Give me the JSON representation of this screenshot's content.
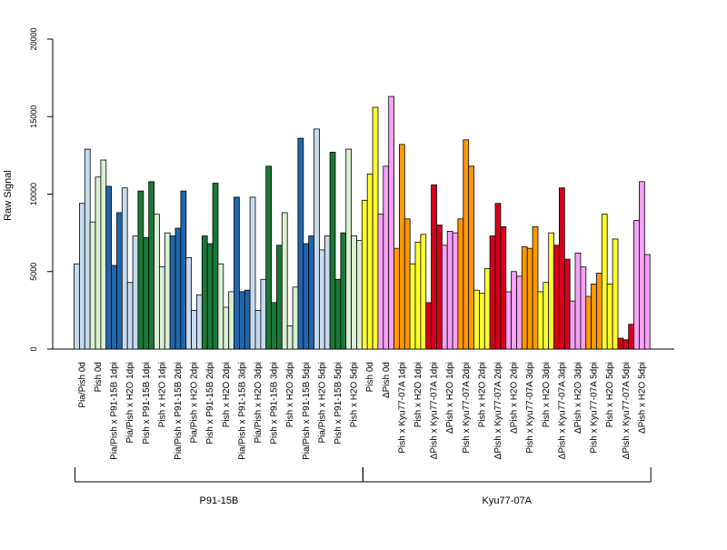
{
  "chart_data": {
    "type": "bar",
    "ylabel": "Raw Signal",
    "ylim": [
      0,
      20000
    ],
    "yticks": [
      0,
      5000,
      10000,
      15000,
      20000
    ],
    "grid": false,
    "legend": "none",
    "colors": {
      "light_blue": "#c6dbef",
      "dark_blue": "#2166ac",
      "light_green": "#d9f0d3",
      "dark_green": "#1b7837",
      "yellow": "#ffff33",
      "violet": "#f7a1f7",
      "orange": "#ff9900",
      "red": "#d7001c"
    },
    "bar_colors": [
      "light_blue",
      "light_green",
      "dark_blue",
      "light_blue",
      "dark_green",
      "light_green",
      "dark_blue",
      "light_blue",
      "dark_green",
      "light_green",
      "dark_blue",
      "light_blue",
      "dark_green",
      "light_green",
      "dark_blue",
      "light_blue",
      "dark_green",
      "light_green",
      "yellow",
      "violet",
      "orange",
      "yellow",
      "red",
      "violet",
      "orange",
      "yellow",
      "red",
      "violet",
      "orange",
      "yellow",
      "red",
      "violet",
      "orange",
      "yellow",
      "red",
      "violet"
    ],
    "categories": [
      "Pia/Pish 0d",
      "Pish 0d",
      "Pia/Pish x P91-15B 1dpi",
      "Pia/Pish x H2O 1dpi",
      "Pish x P91-15B 1dpi",
      "Pish x H2O 1dpi",
      "Pia/Pish x P91-15B 2dpi",
      "Pia/Pish x H2O 2dpi",
      "Pish x P91-15B 2dpi",
      "Pish x H2O 2dpi",
      "Pia/Pish x P91-15B 3dpi",
      "Pia/Pish x H2O 3dpi",
      "Pish x P91-15B 3dpi",
      "Pish x H2O 3dpi",
      "Pia/Pish x P91-15B 5dpi",
      "Pia/Pish x H2O 5dpi",
      "Pish x P91-15B 5dpi",
      "Pish x H2O 5dpi",
      "Pish 0d",
      "ΔPish 0d",
      "Pish x Kyu77-07A 1dpi",
      "Pish x H2O 1dpi",
      "ΔPish x Kyu77-07A 1dpi",
      "ΔPish x H2O 1dpi",
      "Pish x Kyu77-07A 2dpi",
      "Pish x H2O 2dpi",
      "ΔPish x Kyu77-07A 2dpi",
      "ΔPish x H2O 2dpi",
      "Pish x Kyu77-07A 3dpi",
      "Pish x H2O 3dpi",
      "ΔPish x Kyu77-07A 3dpi",
      "ΔPish x H2O 3dpi",
      "Pish x Kyu77-07A 5dpi",
      "Pish x H2O 5dpi",
      "ΔPish x Kyu77-07A 5dpi",
      "ΔPish x H2O 5dpi"
    ],
    "values": [
      [
        5500,
        9400,
        12900
      ],
      [
        8200,
        11100,
        12200
      ],
      [
        10500,
        5400,
        8800
      ],
      [
        10400,
        4300,
        7300
      ],
      [
        10200,
        7200,
        10800
      ],
      [
        8700,
        5300,
        7500
      ],
      [
        7300,
        7800,
        10200
      ],
      [
        5900,
        2500,
        3500
      ],
      [
        7300,
        6800,
        10700
      ],
      [
        5500,
        2700,
        3700
      ],
      [
        9800,
        3700,
        3800
      ],
      [
        9800,
        2500,
        4500
      ],
      [
        11800,
        3000,
        6700
      ],
      [
        8800,
        1500,
        4000
      ],
      [
        13600,
        6800,
        7300
      ],
      [
        14200,
        6400,
        7300
      ],
      [
        12700,
        4500,
        7500
      ],
      [
        12900,
        7300,
        7000
      ],
      [
        9600,
        11300,
        15600
      ],
      [
        8700,
        11800,
        16300
      ],
      [
        6500,
        13200,
        8400
      ],
      [
        5500,
        6900,
        7400
      ],
      [
        3000,
        10600,
        8000
      ],
      [
        6700,
        7600,
        7500
      ],
      [
        8400,
        13500,
        11800
      ],
      [
        3800,
        3600,
        5200
      ],
      [
        7300,
        9400,
        7900
      ],
      [
        3700,
        5000,
        4700
      ],
      [
        6600,
        6500,
        7900
      ],
      [
        3700,
        4300,
        7500
      ],
      [
        6700,
        10400,
        5800
      ],
      [
        3100,
        6200,
        5300
      ],
      [
        3400,
        4200,
        4900
      ],
      [
        8700,
        4200,
        7100
      ],
      [
        700,
        600,
        1600
      ],
      [
        8300,
        10800,
        6100
      ]
    ],
    "groups": [
      {
        "label": "P91-15B",
        "start": 0,
        "end": 17
      },
      {
        "label": "Kyu77-07A",
        "start": 18,
        "end": 35
      }
    ]
  }
}
